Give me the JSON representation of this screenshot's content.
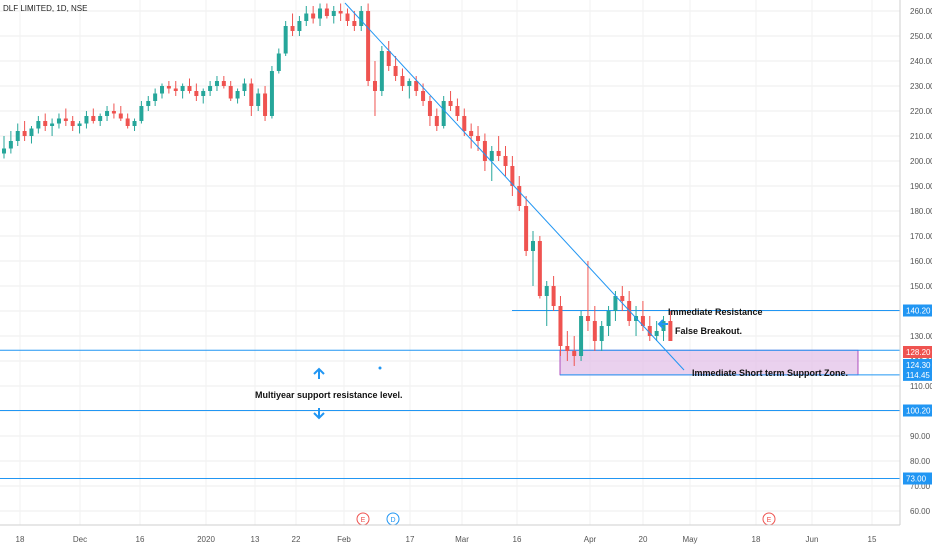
{
  "chart_data": {
    "type": "candlestick",
    "title": "DLF LIMITED, 1D, NSE",
    "ylim": [
      60,
      262
    ],
    "ytick_labels": [
      "260.00",
      "250.00",
      "240.00",
      "230.00",
      "220.00",
      "210.00",
      "200.00",
      "190.00",
      "180.00",
      "170.00",
      "160.00",
      "150.00",
      "140.00",
      "130.00",
      "120.00",
      "110.00",
      "100.00",
      "90.00",
      "80.00",
      "70.00",
      "60.00"
    ],
    "xtick_labels": [
      "18",
      "Dec",
      "16",
      "2020",
      "13",
      "22",
      "Feb",
      "17",
      "Mar",
      "16",
      "Apr",
      "20",
      "May",
      "18",
      "Jun",
      "15"
    ],
    "up_color": "#26a69a",
    "down_color": "#ef5350",
    "line_color": "#2196f3",
    "price_tags": [
      {
        "label": "140.20",
        "value": 140.2,
        "color": "#2196f3"
      },
      {
        "label": "128.20",
        "value": 128.2,
        "color": "#ef5350"
      },
      {
        "label": "124.30",
        "value": 124.3,
        "color": "#2196f3"
      },
      {
        "label": "114.45",
        "value": 114.45,
        "color": "#2196f3"
      },
      {
        "label": "100.20",
        "value": 100.2,
        "color": "#2196f3"
      },
      {
        "label": "73.00",
        "value": 73.0,
        "color": "#2196f3"
      }
    ],
    "horizontal_levels": [
      140.2,
      124.3,
      114.45,
      100.2,
      73.0
    ],
    "support_zone": [
      114.45,
      124.3
    ],
    "annotations": [
      {
        "text": "Immediate Resistance"
      },
      {
        "text": "False Breakout."
      },
      {
        "text": "Immediate Short term Support Zone."
      },
      {
        "text": "Multiyear support resistance level."
      }
    ],
    "events": [
      "E",
      "D",
      "E"
    ],
    "ohlc": [
      [
        203,
        210,
        201,
        205
      ],
      [
        205,
        212,
        203,
        208
      ],
      [
        208,
        215,
        206,
        212
      ],
      [
        212,
        216,
        208,
        210
      ],
      [
        210,
        214,
        207,
        213
      ],
      [
        213,
        218,
        211,
        216
      ],
      [
        216,
        219,
        212,
        214
      ],
      [
        214,
        217,
        210,
        215
      ],
      [
        215,
        219,
        213,
        217
      ],
      [
        217,
        221,
        214,
        216
      ],
      [
        216,
        218,
        212,
        214
      ],
      [
        214,
        216,
        211,
        215
      ],
      [
        215,
        220,
        213,
        218
      ],
      [
        218,
        221,
        215,
        216
      ],
      [
        216,
        219,
        214,
        218
      ],
      [
        218,
        222,
        216,
        220
      ],
      [
        220,
        223,
        217,
        219
      ],
      [
        219,
        222,
        216,
        217
      ],
      [
        217,
        219,
        213,
        214
      ],
      [
        214,
        217,
        212,
        216
      ],
      [
        216,
        224,
        215,
        222
      ],
      [
        222,
        226,
        220,
        224
      ],
      [
        224,
        229,
        222,
        227
      ],
      [
        227,
        231,
        225,
        230
      ],
      [
        230,
        232,
        227,
        229
      ],
      [
        229,
        232,
        226,
        228
      ],
      [
        228,
        231,
        225,
        230
      ],
      [
        230,
        233,
        227,
        228
      ],
      [
        228,
        231,
        224,
        226
      ],
      [
        226,
        229,
        223,
        228
      ],
      [
        228,
        232,
        226,
        230
      ],
      [
        230,
        234,
        228,
        232
      ],
      [
        232,
        234,
        229,
        230
      ],
      [
        230,
        232,
        224,
        225
      ],
      [
        225,
        229,
        223,
        228
      ],
      [
        228,
        233,
        226,
        231
      ],
      [
        231,
        233,
        218,
        222
      ],
      [
        222,
        229,
        220,
        227
      ],
      [
        227,
        230,
        216,
        218
      ],
      [
        218,
        238,
        217,
        236
      ],
      [
        236,
        245,
        235,
        243
      ],
      [
        243,
        256,
        242,
        254
      ],
      [
        254,
        259,
        250,
        252
      ],
      [
        252,
        258,
        250,
        256
      ],
      [
        256,
        262,
        254,
        259
      ],
      [
        259,
        262,
        255,
        257
      ],
      [
        257,
        263,
        254,
        261
      ],
      [
        261,
        263,
        257,
        258
      ],
      [
        258,
        262,
        255,
        260
      ],
      [
        260,
        263,
        256,
        259
      ],
      [
        259,
        261,
        254,
        256
      ],
      [
        256,
        260,
        252,
        254
      ],
      [
        254,
        262,
        252,
        260
      ],
      [
        260,
        263,
        230,
        232
      ],
      [
        232,
        240,
        218,
        228
      ],
      [
        228,
        246,
        226,
        244
      ],
      [
        244,
        248,
        236,
        238
      ],
      [
        238,
        242,
        232,
        234
      ],
      [
        234,
        237,
        228,
        230
      ],
      [
        230,
        233,
        225,
        232
      ],
      [
        232,
        234,
        226,
        228
      ],
      [
        228,
        231,
        222,
        224
      ],
      [
        224,
        226,
        214,
        218
      ],
      [
        218,
        221,
        212,
        214
      ],
      [
        214,
        226,
        213,
        224
      ],
      [
        224,
        228,
        220,
        222
      ],
      [
        222,
        225,
        216,
        218
      ],
      [
        218,
        221,
        210,
        212
      ],
      [
        212,
        215,
        205,
        210
      ],
      [
        210,
        214,
        204,
        208
      ],
      [
        208,
        211,
        196,
        200
      ],
      [
        200,
        206,
        192,
        204
      ],
      [
        204,
        210,
        200,
        202
      ],
      [
        202,
        206,
        194,
        198
      ],
      [
        198,
        202,
        186,
        190
      ],
      [
        190,
        194,
        180,
        182
      ],
      [
        182,
        186,
        162,
        164
      ],
      [
        164,
        172,
        150,
        168
      ],
      [
        168,
        170,
        145,
        146
      ],
      [
        146,
        152,
        134,
        150
      ],
      [
        150,
        154,
        140,
        142
      ],
      [
        142,
        146,
        122,
        126
      ],
      [
        126,
        132,
        120,
        124
      ],
      [
        124,
        130,
        118,
        122
      ],
      [
        122,
        140,
        120,
        138
      ],
      [
        138,
        160,
        132,
        136
      ],
      [
        136,
        142,
        124,
        128
      ],
      [
        128,
        136,
        124,
        134
      ],
      [
        134,
        142,
        130,
        140
      ],
      [
        140,
        148,
        136,
        146
      ],
      [
        146,
        150,
        140,
        144
      ],
      [
        144,
        148,
        134,
        136
      ],
      [
        136,
        142,
        130,
        138
      ],
      [
        138,
        144,
        132,
        134
      ],
      [
        134,
        138,
        128,
        130
      ],
      [
        130,
        136,
        128,
        132
      ],
      [
        132,
        138,
        128,
        136
      ],
      [
        136,
        140,
        130,
        128
      ]
    ]
  }
}
